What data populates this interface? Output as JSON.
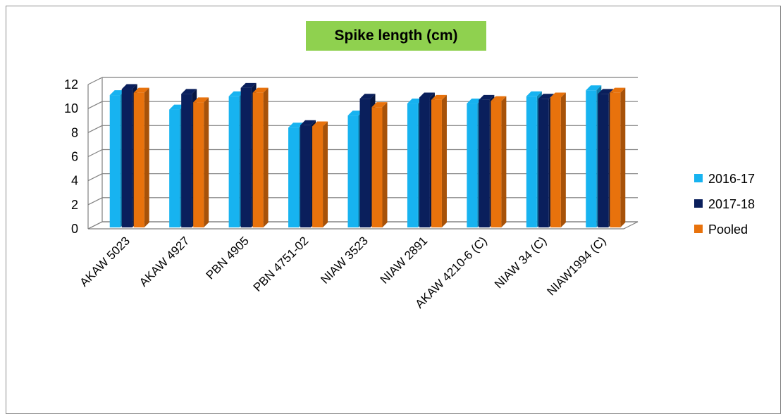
{
  "chart_data": {
    "type": "bar",
    "title": "Spike length (cm)",
    "xlabel": "",
    "ylabel": "",
    "ylim": [
      0,
      12
    ],
    "yticks": [
      0,
      2,
      4,
      6,
      8,
      10,
      12
    ],
    "grid": true,
    "legend_position": "right",
    "categories": [
      "AKAW 5023",
      "AKAW 4927",
      "PBN 4905",
      "PBN 4751-02",
      "NIAW 3523",
      "NIAW 2891",
      "AKAW 4210-6 (C)",
      "NIAW 34 (C)",
      "NIAW1994 (C)"
    ],
    "series": [
      {
        "name": "2016-17",
        "color": "#17b3f0",
        "values": [
          11.0,
          9.8,
          10.9,
          8.3,
          9.3,
          10.3,
          10.3,
          10.9,
          11.4
        ]
      },
      {
        "name": "2017-18",
        "color": "#0a1f5c",
        "values": [
          11.5,
          11.1,
          11.6,
          8.5,
          10.7,
          10.8,
          10.6,
          10.7,
          11.1
        ]
      },
      {
        "name": "Pooled",
        "color": "#e8720c",
        "values": [
          11.2,
          10.4,
          11.2,
          8.4,
          10.0,
          10.6,
          10.5,
          10.8,
          11.2
        ]
      }
    ]
  }
}
